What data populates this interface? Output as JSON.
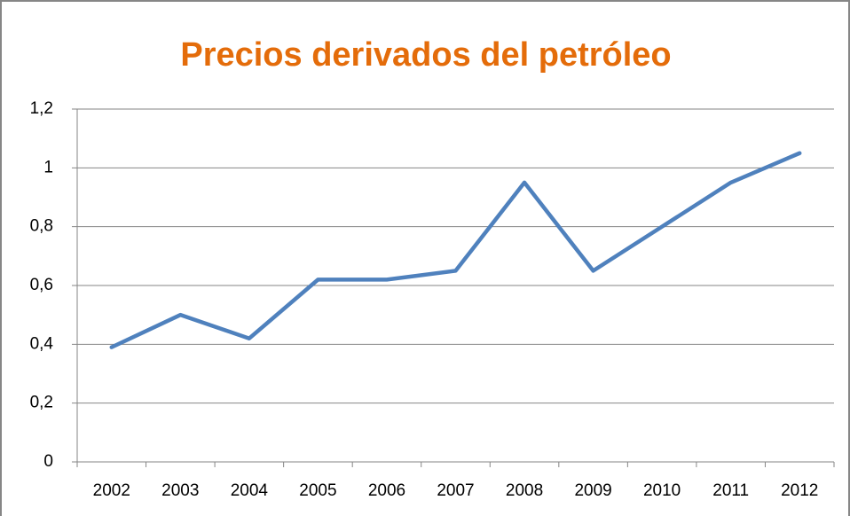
{
  "chart_data": {
    "type": "line",
    "title": "Precios derivados del petróleo",
    "categories": [
      "2002",
      "2003",
      "2004",
      "2005",
      "2006",
      "2007",
      "2008",
      "2009",
      "2010",
      "2011",
      "2012"
    ],
    "series": [
      {
        "color": "#4f81bd",
        "values": [
          0.39,
          0.5,
          0.42,
          0.62,
          0.62,
          0.65,
          0.95,
          0.65,
          0.8,
          0.95,
          1.05
        ]
      }
    ],
    "ylim": [
      0,
      1.2
    ],
    "yticks": [
      0,
      {
        "value": 0.2,
        "label": "0,2"
      },
      {
        "value": 0.4,
        "label": "0,4"
      },
      {
        "value": 0.6,
        "label": "0,6"
      },
      {
        "value": 0.8,
        "label": "0,8"
      },
      1,
      {
        "value": 1.2,
        "label": "1,2"
      }
    ],
    "grid": true
  }
}
